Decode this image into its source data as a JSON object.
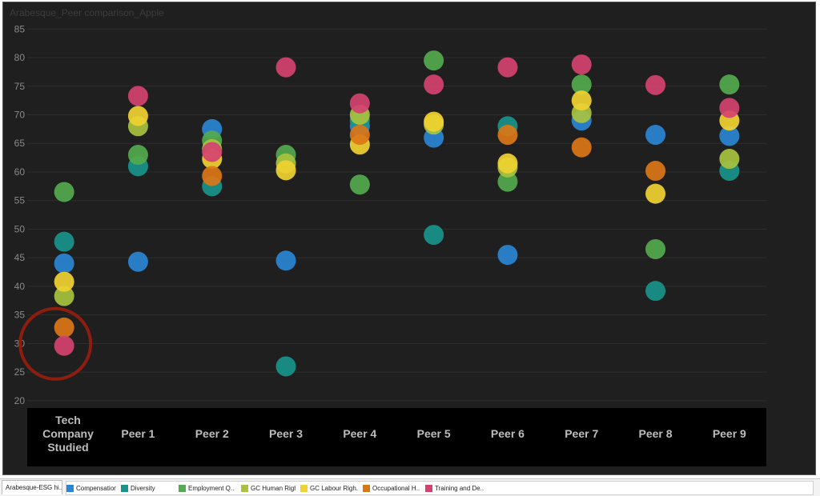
{
  "sheet_title": "Arabesque_Peer comparison_Apple",
  "chart_data": {
    "type": "scatter",
    "title": "Arabesque_Peer comparison_Apple",
    "categories": [
      "Tech Company Studied",
      "Peer 1",
      "Peer 2",
      "Peer 3",
      "Peer 4",
      "Peer 5",
      "Peer 6",
      "Peer 7",
      "Peer 8",
      "Peer 9"
    ],
    "category_lines": [
      [
        "Tech",
        "Company",
        "Studied"
      ],
      [
        "Peer 1"
      ],
      [
        "Peer 2"
      ],
      [
        "Peer 3"
      ],
      [
        "Peer 4"
      ],
      [
        "Peer 5"
      ],
      [
        "Peer 6"
      ],
      [
        "Peer 7"
      ],
      [
        "Peer 8"
      ],
      [
        "Peer 9"
      ]
    ],
    "yticks": [
      20,
      25,
      30,
      35,
      40,
      45,
      50,
      55,
      60,
      65,
      70,
      75,
      80,
      85
    ],
    "ylim": [
      19,
      87
    ],
    "grid": true,
    "legend_position": "bottom",
    "series": [
      {
        "name": "Compensation",
        "color": "#2a86d4",
        "values": [
          44,
          44.3,
          67.5,
          44.5,
          68,
          66,
          45.5,
          69,
          66.5,
          66.3
        ]
      },
      {
        "name": "Diversity",
        "color": "#18948b",
        "values": [
          47.8,
          61,
          57.5,
          26,
          69,
          49,
          68,
          null,
          39.2,
          60.2
        ]
      },
      {
        "name": "Employment Q..",
        "color": "#54aa4e",
        "values": [
          56.5,
          63,
          65.5,
          63,
          57.8,
          79.5,
          58.3,
          75.3,
          46.5,
          75.3
        ]
      },
      {
        "name": "GC Human Righ..",
        "color": "#a9c23f",
        "values": [
          38.3,
          68,
          64,
          61.5,
          70,
          68.3,
          60.8,
          70.3,
          null,
          62.3
        ]
      },
      {
        "name": "GC Labour Righ..",
        "color": "#f0d231",
        "values": [
          40.8,
          69.8,
          62.3,
          60.3,
          64.8,
          68.8,
          61.5,
          72.5,
          56.2,
          69
        ]
      },
      {
        "name": "Occupational H..",
        "color": "#db7617",
        "values": [
          32.8,
          null,
          59.3,
          null,
          66.5,
          null,
          66.5,
          64.3,
          60.2,
          null
        ]
      },
      {
        "name": "Training and De..",
        "color": "#d44270",
        "values": [
          29.6,
          73.3,
          63.5,
          78.3,
          72,
          75.3,
          78.3,
          78.8,
          75.2,
          71.2
        ]
      }
    ],
    "highlight_circle": {
      "category": "Tech Company Studied",
      "around_series": [
        "Occupational H..",
        "Training and De.."
      ]
    }
  },
  "bottom_bar": {
    "sheet_tab": "Arabesque-ESG hi.."
  }
}
